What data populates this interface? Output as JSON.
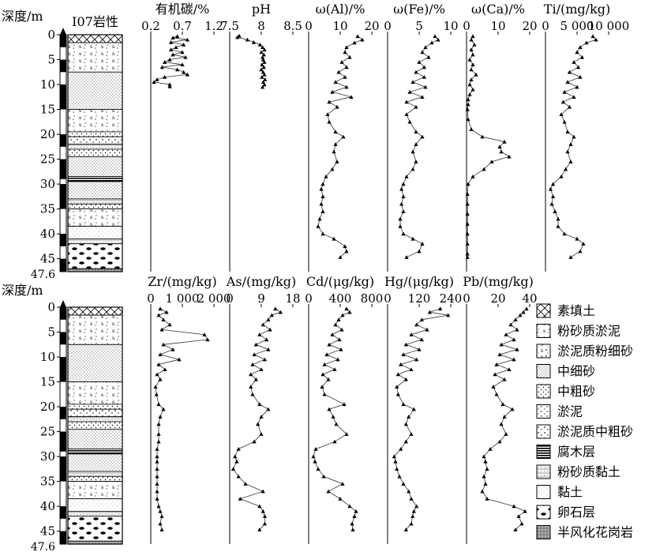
{
  "depth_label": "深度/m",
  "column_label": "I07岩性",
  "depth_ticks": [
    "0",
    "5",
    "10",
    "15",
    "20",
    "25",
    "30",
    "35",
    "40",
    "45"
  ],
  "depth_bottom_label": "47.6",
  "legend": [
    {
      "label": "素填土",
      "pattern": "crosshatch"
    },
    {
      "label": "粉砂质淤泥",
      "pattern": "siltysilt"
    },
    {
      "label": "淤泥质粉细砂",
      "pattern": "muddyfinesand"
    },
    {
      "label": "中细砂",
      "pattern": "medfine"
    },
    {
      "label": "中粗砂",
      "pattern": "medcoarse"
    },
    {
      "label": "淤泥",
      "pattern": "silt"
    },
    {
      "label": "淤泥质中粗砂",
      "pattern": "muddycoarse"
    },
    {
      "label": "腐木层",
      "pattern": "wood"
    },
    {
      "label": "粉砂质黏土",
      "pattern": "siltyclay"
    },
    {
      "label": "黏土",
      "pattern": "clay"
    },
    {
      "label": "卵石层",
      "pattern": "pebble"
    },
    {
      "label": "半风化花岗岩",
      "pattern": "granite"
    }
  ],
  "lithology_layers": [
    {
      "top": 0,
      "bottom": 1.6,
      "pattern": "crosshatch"
    },
    {
      "top": 1.6,
      "bottom": 7.5,
      "pattern": "siltysilt"
    },
    {
      "top": 7.5,
      "bottom": 15.0,
      "pattern": "medfine"
    },
    {
      "top": 15.0,
      "bottom": 19.5,
      "pattern": "siltysilt"
    },
    {
      "top": 19.5,
      "bottom": 20.5,
      "pattern": "medcoarse"
    },
    {
      "top": 20.5,
      "bottom": 22.0,
      "pattern": "muddycoarse"
    },
    {
      "top": 22.0,
      "bottom": 23.0,
      "pattern": "siltyclay"
    },
    {
      "top": 23.0,
      "bottom": 24.5,
      "pattern": "medcoarse"
    },
    {
      "top": 24.5,
      "bottom": 28.5,
      "pattern": "medfine"
    },
    {
      "top": 28.5,
      "bottom": 29.5,
      "pattern": "wood"
    },
    {
      "top": 29.5,
      "bottom": 33.0,
      "pattern": "medfine"
    },
    {
      "top": 33.0,
      "bottom": 34.0,
      "pattern": "siltyclay"
    },
    {
      "top": 34.0,
      "bottom": 35.0,
      "pattern": "medcoarse"
    },
    {
      "top": 35.0,
      "bottom": 38.5,
      "pattern": "siltysilt"
    },
    {
      "top": 38.5,
      "bottom": 41.0,
      "pattern": "clay"
    },
    {
      "top": 41.0,
      "bottom": 42.0,
      "pattern": "siltyclay"
    },
    {
      "top": 42.0,
      "bottom": 47.0,
      "pattern": "pebble"
    },
    {
      "top": 47.0,
      "bottom": 47.6,
      "pattern": "granite"
    }
  ],
  "depth_bar_black": [
    [
      0,
      2.5
    ],
    [
      5,
      7.5
    ],
    [
      10,
      15
    ],
    [
      20,
      22.5
    ],
    [
      25,
      29
    ],
    [
      30,
      35
    ],
    [
      40,
      42.5
    ],
    [
      45,
      47.6
    ]
  ],
  "chart_data": [
    {
      "type": "line",
      "row": 0,
      "title": "有机碳/%",
      "xlim": [
        0.2,
        1.2
      ],
      "ticks": [
        0.2,
        0.7,
        1.2
      ],
      "tick_labels": [
        "0.2",
        "0.7",
        "1.2"
      ],
      "depth": [
        0.3,
        0.6,
        1.0,
        1.5,
        2.0,
        2.5,
        3.0,
        3.5,
        4.0,
        4.5,
        5.0,
        5.5,
        6.0,
        6.5,
        7.0,
        7.5,
        8.0,
        8.5,
        9.0,
        9.5,
        10.0,
        10.4
      ],
      "values": [
        0.62,
        0.55,
        0.78,
        0.52,
        0.72,
        0.6,
        0.52,
        0.7,
        0.55,
        0.75,
        0.5,
        0.42,
        0.7,
        0.38,
        0.62,
        0.72,
        0.78,
        0.42,
        0.3,
        0.25,
        0.5,
        0.5
      ]
    },
    {
      "type": "line",
      "row": 0,
      "title": "pH",
      "xlim": [
        7.5,
        8.5
      ],
      "ticks": [
        7.5,
        8,
        8.5
      ],
      "tick_labels": [
        "7.5",
        "8",
        "8.5"
      ],
      "depth": [
        0.2,
        0.5,
        1.0,
        1.5,
        2.0,
        2.5,
        3.0,
        3.5,
        4.0,
        4.5,
        5.0,
        5.5,
        6.0,
        6.5,
        7.0,
        7.5,
        8.0,
        8.5,
        9.0,
        9.5,
        10.0,
        10.5
      ],
      "values": [
        7.65,
        7.62,
        7.78,
        7.88,
        7.98,
        8.02,
        8.05,
        8.0,
        8.04,
        8.02,
        8.03,
        8.05,
        8.01,
        8.04,
        8.0,
        8.03,
        8.05,
        8.01,
        8.06,
        8.03,
        8.05,
        8.02
      ]
    },
    {
      "type": "line",
      "row": 0,
      "title": "ω(Al)/%",
      "xlim": [
        0,
        20
      ],
      "ticks": [
        0,
        10,
        20
      ],
      "tick_labels": [
        "0",
        "10",
        "20"
      ],
      "depth": [
        0.3,
        1.0,
        1.6,
        2.5,
        3.5,
        4.5,
        5.5,
        6.5,
        7.5,
        8.5,
        9.5,
        10.5,
        11.5,
        12.5,
        13.5,
        14.5,
        16.0,
        17.5,
        19.5,
        20.5,
        22.0,
        23.5,
        25.5,
        27.0,
        28.5,
        30.0,
        31.0,
        32.5,
        34.0,
        35.5,
        37.0,
        38.5,
        40.0,
        41.0,
        42.5,
        43.5,
        44.7
      ],
      "values": [
        15.5,
        17.0,
        14.5,
        12.0,
        11.5,
        13.0,
        10.5,
        12.0,
        9.5,
        11.5,
        8.5,
        12.0,
        7.5,
        13.5,
        6.5,
        9.0,
        6.0,
        6.5,
        8.5,
        11.0,
        8.5,
        8.0,
        9.0,
        7.5,
        5.5,
        4.5,
        4.0,
        4.5,
        4.0,
        4.5,
        3.5,
        3.0,
        4.5,
        8.0,
        11.5,
        12.0,
        10.0
      ]
    },
    {
      "type": "line",
      "row": 0,
      "title": "ω(Fe)/%",
      "xlim": [
        0,
        10
      ],
      "ticks": [
        0,
        5,
        10
      ],
      "tick_labels": [
        "0",
        "5",
        "10"
      ],
      "depth": [
        0.3,
        1.0,
        1.6,
        2.5,
        3.5,
        4.5,
        5.5,
        6.5,
        7.5,
        8.5,
        9.5,
        10.5,
        11.5,
        12.5,
        13.5,
        14.5,
        16.0,
        17.5,
        19.5,
        20.5,
        22.0,
        23.5,
        25.5,
        27.0,
        28.5,
        30.0,
        31.0,
        32.5,
        34.0,
        35.5,
        37.0,
        38.5,
        40.0,
        41.0,
        42.0,
        43.5,
        44.7
      ],
      "values": [
        7.5,
        8.0,
        7.0,
        6.0,
        5.5,
        6.5,
        5.0,
        5.8,
        4.5,
        5.8,
        4.0,
        6.0,
        3.5,
        5.5,
        3.0,
        4.5,
        3.0,
        3.5,
        4.5,
        5.5,
        4.5,
        4.0,
        4.5,
        4.0,
        3.0,
        2.5,
        2.2,
        2.5,
        2.2,
        2.5,
        2.0,
        2.0,
        2.5,
        4.0,
        5.5,
        5.0,
        3.0
      ]
    },
    {
      "type": "line",
      "row": 0,
      "title": "ω(Ca)/%",
      "xlim": [
        0,
        20
      ],
      "ticks": [
        0,
        10,
        20
      ],
      "tick_labels": [
        "0",
        "10",
        "20"
      ],
      "depth": [
        0.3,
        1.0,
        2.0,
        3.0,
        4.0,
        5.0,
        6.0,
        7.0,
        8.0,
        9.0,
        10.0,
        11.0,
        12.0,
        13.0,
        14.0,
        15.0,
        17.0,
        19.0,
        20.5,
        21.5,
        22.5,
        23.5,
        24.5,
        25.5,
        27.0,
        28.5,
        30.0,
        32.0,
        34.0,
        36.0,
        38.0,
        40.0,
        42.0,
        44.0,
        44.7
      ],
      "values": [
        2.0,
        1.5,
        2.5,
        1.5,
        2.0,
        1.0,
        2.0,
        1.5,
        3.0,
        1.5,
        1.0,
        2.0,
        1.0,
        0.5,
        0.5,
        0.3,
        0.5,
        1.5,
        5.0,
        12.0,
        10.5,
        11.0,
        13.5,
        8.0,
        5.5,
        2.0,
        0.5,
        0.3,
        0.3,
        0.3,
        0.3,
        0.3,
        0.3,
        0.3,
        0.3
      ]
    },
    {
      "type": "line",
      "row": 0,
      "title": "Ti/(mg/kg)",
      "xlim": [
        0,
        10000
      ],
      "ticks": [
        0,
        5000,
        10000
      ],
      "tick_labels": [
        "0",
        "5 000",
        "10 000"
      ],
      "depth": [
        0.3,
        1.0,
        1.6,
        2.5,
        3.5,
        4.5,
        5.5,
        6.5,
        7.5,
        8.5,
        9.5,
        10.5,
        11.5,
        12.5,
        13.5,
        14.5,
        16.0,
        17.5,
        19.5,
        20.5,
        22.0,
        23.5,
        25.5,
        27.0,
        28.5,
        30.0,
        31.0,
        32.5,
        34.0,
        35.5,
        37.0,
        38.5,
        40.0,
        41.0,
        42.0,
        43.5,
        44.7
      ],
      "values": [
        7500,
        8000,
        6500,
        5500,
        5000,
        5800,
        4500,
        5200,
        3800,
        5500,
        3500,
        5000,
        3000,
        4500,
        2800,
        3800,
        2500,
        3000,
        3500,
        4500,
        4000,
        3500,
        4000,
        3200,
        2500,
        1200,
        800,
        1200,
        1000,
        1500,
        2000,
        2000,
        3000,
        5000,
        6000,
        5500,
        4000
      ]
    },
    {
      "type": "line",
      "row": 1,
      "title": "Zr/(mg/kg)",
      "xlim": [
        0,
        2000
      ],
      "ticks": [
        0,
        1000,
        2000
      ],
      "tick_labels": [
        "0",
        "1 000",
        "2 000"
      ],
      "depth": [
        0.3,
        1.0,
        1.6,
        2.5,
        3.5,
        4.5,
        5.5,
        6.5,
        7.5,
        8.5,
        9.5,
        10.5,
        11.5,
        12.5,
        13.5,
        14.5,
        16.0,
        17.5,
        19.5,
        20.5,
        22.0,
        23.5,
        25.5,
        27.0,
        28.5,
        30.0,
        31.0,
        32.5,
        34.0,
        35.5,
        37.0,
        38.5,
        40.0,
        41.0,
        42.0,
        43.5,
        44.7
      ],
      "values": [
        300,
        500,
        250,
        400,
        600,
        350,
        1700,
        1800,
        400,
        700,
        300,
        900,
        250,
        450,
        200,
        300,
        150,
        180,
        250,
        400,
        300,
        250,
        250,
        250,
        200,
        200,
        200,
        200,
        200,
        200,
        200,
        200,
        250,
        300,
        350,
        300,
        350
      ]
    },
    {
      "type": "line",
      "row": 1,
      "title": "As/(mg/kg)",
      "xlim": [
        0,
        18
      ],
      "ticks": [
        0,
        9,
        18
      ],
      "tick_labels": [
        "0",
        "9",
        "18"
      ],
      "depth": [
        0.3,
        1.0,
        1.6,
        2.5,
        3.5,
        4.5,
        5.5,
        6.5,
        7.5,
        8.5,
        9.5,
        10.5,
        11.5,
        12.5,
        13.5,
        14.5,
        16.0,
        17.5,
        19.5,
        20.5,
        22.0,
        23.5,
        25.5,
        27.0,
        28.5,
        30.0,
        31.0,
        32.5,
        34.0,
        35.5,
        37.0,
        38.5,
        40.0,
        41.0,
        42.0,
        43.5,
        44.7
      ],
      "values": [
        13.0,
        14.5,
        12.0,
        11.0,
        9.5,
        11.5,
        8.5,
        10.5,
        7.5,
        11.0,
        7.0,
        10.0,
        6.5,
        9.0,
        6.0,
        7.5,
        6.0,
        6.5,
        8.5,
        11.0,
        9.0,
        8.0,
        9.0,
        7.0,
        2.5,
        1.5,
        2.0,
        1.0,
        2.5,
        4.5,
        9.5,
        3.0,
        8.5,
        9.5,
        10.0,
        10.0,
        8.5
      ]
    },
    {
      "type": "line",
      "row": 1,
      "title": "Cd/(μg/kg)",
      "xlim": [
        0,
        800
      ],
      "ticks": [
        0,
        400,
        800
      ],
      "tick_labels": [
        "0",
        "400",
        "800"
      ],
      "depth": [
        0.3,
        1.0,
        1.6,
        2.5,
        3.5,
        4.5,
        5.5,
        6.5,
        7.5,
        8.5,
        9.5,
        10.5,
        11.5,
        12.5,
        13.5,
        14.5,
        16.0,
        17.5,
        19.5,
        20.5,
        22.0,
        23.5,
        25.5,
        27.0,
        28.5,
        30.0,
        31.0,
        32.5,
        34.0,
        35.5,
        37.0,
        38.5,
        40.0,
        41.0,
        42.0,
        43.5,
        44.7
      ],
      "values": [
        480,
        520,
        430,
        380,
        340,
        420,
        300,
        390,
        260,
        410,
        230,
        370,
        200,
        330,
        180,
        250,
        170,
        200,
        450,
        260,
        310,
        350,
        480,
        330,
        90,
        60,
        80,
        120,
        190,
        430,
        250,
        400,
        520,
        600,
        580,
        550,
        560
      ]
    },
    {
      "type": "line",
      "row": 1,
      "title": "Hg/(μg/kg)",
      "xlim": [
        0,
        240
      ],
      "ticks": [
        0,
        120,
        240
      ],
      "tick_labels": [
        "0",
        "120",
        "240"
      ],
      "depth": [
        0.3,
        1.0,
        1.6,
        2.5,
        3.5,
        4.5,
        5.5,
        6.5,
        7.5,
        8.5,
        9.5,
        10.5,
        11.5,
        12.5,
        13.5,
        14.5,
        16.0,
        17.5,
        19.5,
        20.5,
        22.0,
        23.5,
        25.5,
        27.0,
        28.5,
        30.0,
        31.0,
        32.5,
        34.0,
        35.5,
        37.0,
        38.5,
        40.0,
        41.0,
        42.0,
        43.5,
        44.7
      ],
      "values": [
        200,
        160,
        230,
        130,
        110,
        150,
        90,
        130,
        70,
        120,
        60,
        110,
        50,
        90,
        40,
        70,
        35,
        40,
        60,
        100,
        80,
        70,
        90,
        70,
        50,
        25,
        30,
        35,
        45,
        60,
        80,
        90,
        110,
        100,
        95,
        90,
        70
      ]
    },
    {
      "type": "line",
      "row": 1,
      "title": "Pb/(mg/kg)",
      "xlim": [
        0,
        40
      ],
      "ticks": [
        0,
        20,
        40
      ],
      "tick_labels": [
        "0",
        "20",
        "40"
      ],
      "depth": [
        0.3,
        1.0,
        1.6,
        2.5,
        3.5,
        4.5,
        5.5,
        6.5,
        7.5,
        8.5,
        9.5,
        10.5,
        11.5,
        12.5,
        13.5,
        14.5,
        16.0,
        17.5,
        19.5,
        20.5,
        22.0,
        23.5,
        25.5,
        27.0,
        28.5,
        30.0,
        31.0,
        32.5,
        34.0,
        35.5,
        37.0,
        38.5,
        40.0,
        41.0,
        42.0,
        43.5,
        44.7
      ],
      "values": [
        38,
        36,
        34,
        31,
        28,
        32,
        25,
        30,
        22,
        32,
        21,
        30,
        19,
        27,
        18,
        24,
        17,
        19,
        23,
        29,
        24,
        22,
        25,
        21,
        15,
        11,
        12,
        13,
        11,
        12,
        10,
        13,
        30,
        37,
        33,
        35,
        31
      ]
    }
  ]
}
